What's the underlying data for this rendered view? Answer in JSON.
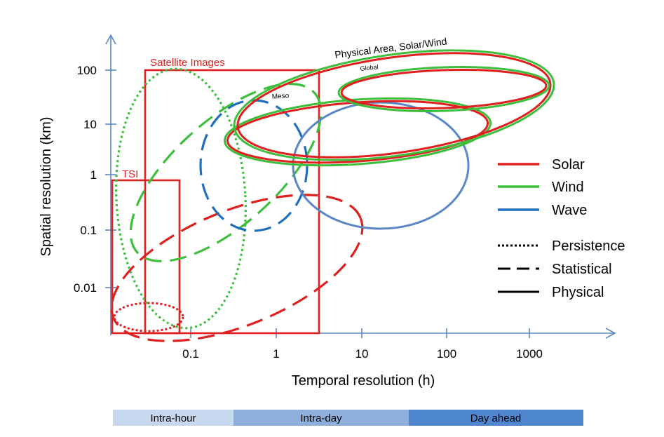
{
  "axes": {
    "x_label": "Temporal resolution (h)",
    "y_label": "Spatial resolution (km)",
    "x_ticks": [
      "0.1",
      "1",
      "10",
      "100",
      "1000"
    ],
    "y_ticks": [
      "100",
      "10",
      "1",
      "0.1",
      "0.01"
    ]
  },
  "regions": {
    "satellite_images": "Satellite Images",
    "tsi": "TSI",
    "physical_area": "Physical Area, Solar/Wind",
    "global": "Global",
    "meso": "Meso"
  },
  "legend": {
    "solar": "Solar",
    "wind": "Wind",
    "wave": "Wave",
    "persistence": "Persistence",
    "statistical": "Statistical",
    "physical": "Physical"
  },
  "colors": {
    "solar": "#e01f1f",
    "wind": "#3dbf3d",
    "wave": "#2e74b5",
    "wave_physical": "#5b87c5",
    "intra_hour": "#c7d7ee",
    "intra_day": "#8eaedc",
    "day_ahead": "#4f86d0"
  },
  "horizon_bar": {
    "intra_hour": "Intra-hour",
    "intra_day": "Intra-day",
    "day_ahead": "Day ahead"
  }
}
